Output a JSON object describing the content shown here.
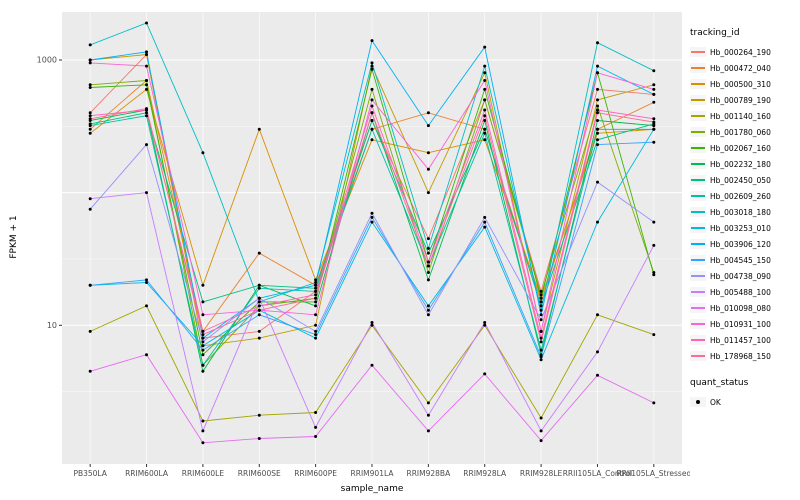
{
  "chart_data": {
    "type": "line",
    "title": "",
    "xlabel": "sample_name",
    "ylabel": "FPKM + 1",
    "y_scale": "log10",
    "ylim": [
      0.9,
      2300
    ],
    "y_ticks_labeled": [
      1000,
      10
    ],
    "y_gridlines_major": [
      10,
      100,
      1000
    ],
    "y_gridlines_minor": [
      3.162,
      31.62,
      316.2
    ],
    "grid": true,
    "legend_position": "right",
    "categories": [
      "PB350LA",
      "RRIM600LA",
      "RRIM600LE",
      "RRIM600SE",
      "RRIM600PE",
      "RRIM901LA",
      "RRIM928BA",
      "RRIM928LA",
      "RRIM928LE",
      "RRII105LA_Control",
      "RRII105LA_Stressed"
    ],
    "series": [
      {
        "name": "Hb_000264_190",
        "color": "#F8766D",
        "values": [
          400,
          1100,
          8,
          9,
          18,
          350,
          45,
          500,
          18,
          600,
          550
        ]
      },
      {
        "name": "Hb_000472_040",
        "color": "#EA8331",
        "values": [
          300,
          700,
          9,
          35,
          20,
          300,
          400,
          300,
          15,
          300,
          480
        ]
      },
      {
        "name": "Hb_000500_310",
        "color": "#D89000",
        "values": [
          280,
          600,
          20,
          300,
          22,
          250,
          200,
          250,
          16,
          280,
          300
        ]
      },
      {
        "name": "Hb_000789_190",
        "color": "#C09B00",
        "values": [
          1000,
          1100,
          7,
          8,
          10,
          900,
          100,
          800,
          9,
          500,
          650
        ]
      },
      {
        "name": "Hb_001140_160",
        "color": "#A3A500",
        "values": [
          9,
          14,
          1.9,
          2.1,
          2.2,
          10,
          2.6,
          10,
          2.0,
          12,
          8.5
        ]
      },
      {
        "name": "Hb_001780_060",
        "color": "#7CAE00",
        "values": [
          650,
          700,
          5,
          14,
          16,
          600,
          25,
          500,
          17,
          450,
          25
        ]
      },
      {
        "name": "Hb_002067_160",
        "color": "#39B600",
        "values": [
          620,
          650,
          6,
          15,
          15,
          850,
          30,
          600,
          16,
          800,
          24
        ]
      },
      {
        "name": "Hb_002232_180",
        "color": "#00BB4E",
        "values": [
          350,
          420,
          4.5,
          20,
          14,
          400,
          22,
          350,
          6,
          350,
          320
        ]
      },
      {
        "name": "Hb_002450_050",
        "color": "#00BF7D",
        "values": [
          330,
          400,
          15,
          20,
          19,
          350,
          35,
          300,
          14,
          250,
          330
        ]
      },
      {
        "name": "Hb_002609_260",
        "color": "#00C1A3",
        "values": [
          320,
          380,
          5,
          19,
          18,
          300,
          28,
          280,
          6.5,
          300,
          300
        ]
      },
      {
        "name": "Hb_003018_180",
        "color": "#00BFC4",
        "values": [
          1300,
          1900,
          200,
          15,
          21,
          950,
          38,
          900,
          13,
          1350,
          830
        ]
      },
      {
        "name": "Hb_003253_010",
        "color": "#00BAE0",
        "values": [
          20,
          21,
          7,
          13,
          8,
          60,
          14,
          55,
          5.5,
          60,
          300
        ]
      },
      {
        "name": "Hb_003906_120",
        "color": "#00B0F6",
        "values": [
          1000,
          1150,
          8,
          16,
          20,
          1400,
          320,
          1250,
          12,
          900,
          550
        ]
      },
      {
        "name": "Hb_004545_150",
        "color": "#35A2FF",
        "values": [
          20,
          22,
          6.5,
          12,
          8.5,
          65,
          13,
          60,
          5.8,
          230,
          240
        ]
      },
      {
        "name": "Hb_004738_090",
        "color": "#9590FF",
        "values": [
          75,
          230,
          7.5,
          16,
          9,
          70,
          12,
          65,
          11,
          120,
          60
        ]
      },
      {
        "name": "Hb_005488_100",
        "color": "#C77CFF",
        "values": [
          90,
          100,
          1.6,
          16,
          1.7,
          10.5,
          2.1,
          10.5,
          1.6,
          6.3,
          40
        ]
      },
      {
        "name": "Hb_010098_080",
        "color": "#E76BF3",
        "values": [
          4.5,
          6,
          1.3,
          1.4,
          1.45,
          5,
          1.6,
          4.3,
          1.35,
          4.2,
          2.6
        ]
      },
      {
        "name": "Hb_010931_100",
        "color": "#FA62DB",
        "values": [
          950,
          900,
          12,
          13,
          12,
          500,
          150,
          700,
          9,
          800,
          600
        ]
      },
      {
        "name": "Hb_011457_100",
        "color": "#FF62BC",
        "values": [
          380,
          420,
          9,
          14,
          17,
          450,
          30,
          420,
          8,
          420,
          360
        ]
      },
      {
        "name": "Hb_178968_150",
        "color": "#FF6A98",
        "values": [
          360,
          430,
          8.5,
          13,
          16,
          400,
          28,
          380,
          7.5,
          400,
          340
        ]
      }
    ],
    "legend": {
      "tracking_title": "tracking_id",
      "quant_title": "quant_status",
      "quant_items": [
        {
          "label": "OK"
        }
      ]
    },
    "style": {
      "panel_bg": "#EBEBEB",
      "grid_color": "#FFFFFF",
      "tick_color": "#333333",
      "tick_label_color": "#4D4D4D",
      "point_color": "#000000"
    }
  }
}
